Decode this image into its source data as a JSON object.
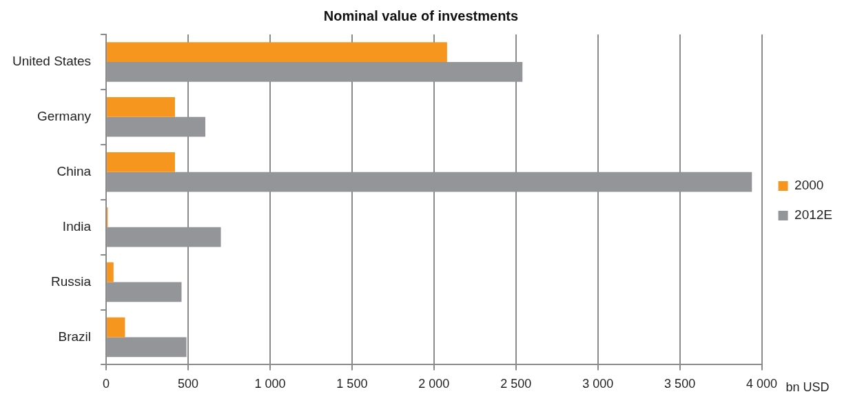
{
  "chart_data": {
    "type": "bar",
    "orientation": "horizontal",
    "title": "Nominal value of investments",
    "xlabel": "bn USD",
    "categories": [
      "United States",
      "Germany",
      "China",
      "India",
      "Russia",
      "Brazil"
    ],
    "series": [
      {
        "name": "2000",
        "color": "#f7961e",
        "values": [
          2080,
          420,
          420,
          10,
          45,
          115
        ]
      },
      {
        "name": "2012E",
        "color": "#939598",
        "values": [
          2540,
          605,
          3940,
          700,
          460,
          490
        ]
      }
    ],
    "xlim": [
      0,
      4000
    ],
    "xticks": [
      0,
      500,
      {
        "value": 1000,
        "label": "1 000"
      },
      {
        "value": 1500,
        "label": "1 500"
      },
      {
        "value": 2000,
        "label": "2 000"
      },
      {
        "value": 2500,
        "label": "2 500"
      },
      {
        "value": 3000,
        "label": "3 000"
      },
      {
        "value": 3500,
        "label": "3 500"
      },
      {
        "value": 4000,
        "label": "4 000"
      }
    ],
    "grid": "x",
    "legend": "right"
  }
}
